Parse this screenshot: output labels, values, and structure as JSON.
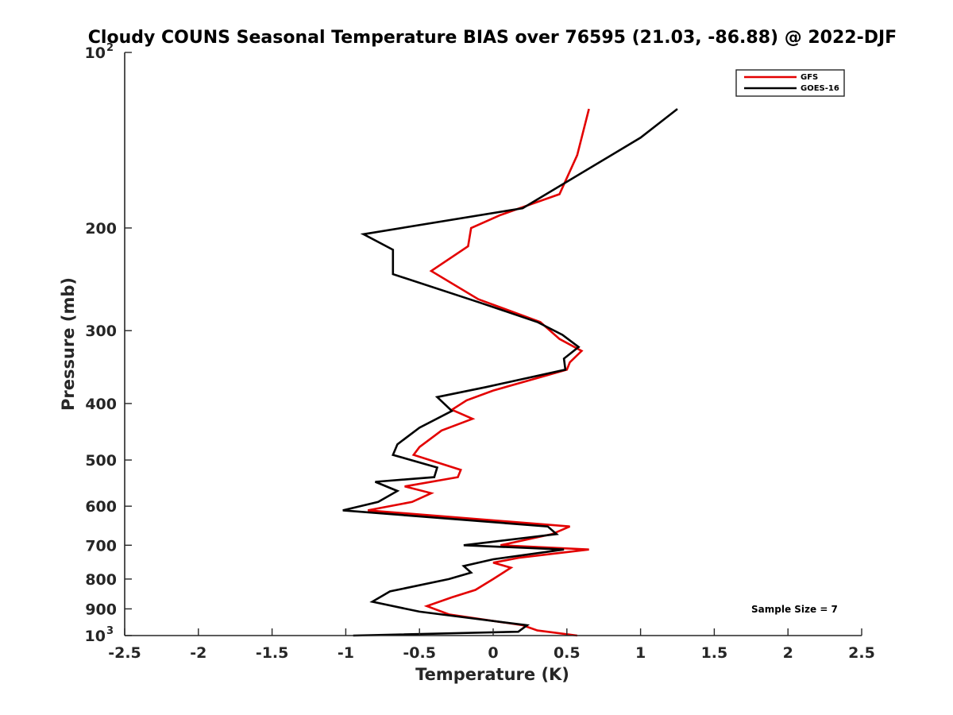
{
  "chart_data": {
    "type": "line",
    "title": "Cloudy COUNS Seasonal Temperature BIAS over 76595 (21.03, -86.88) @ 2022-DJF",
    "xlabel": "Temperature (K)",
    "ylabel": "Pressure (mb)",
    "xlim": [
      -2.5,
      2.5
    ],
    "ylim": [
      1000,
      100
    ],
    "yscale": "log",
    "x_ticks": [
      "-2.5",
      "-2",
      "-1.5",
      "-1",
      "-0.5",
      "0",
      "0.5",
      "1",
      "1.5",
      "2",
      "2.5"
    ],
    "y_ticks": [
      {
        "value": 100,
        "base": "10",
        "exp": "2"
      },
      {
        "value": 200,
        "label": "200"
      },
      {
        "value": 300,
        "label": "300"
      },
      {
        "value": 400,
        "label": "400"
      },
      {
        "value": 500,
        "label": "500"
      },
      {
        "value": 600,
        "label": "600"
      },
      {
        "value": 700,
        "label": "700"
      },
      {
        "value": 800,
        "label": "800"
      },
      {
        "value": 900,
        "label": "900"
      },
      {
        "value": 1000,
        "base": "10",
        "exp": "3"
      }
    ],
    "legend_position": "top-right",
    "annotation": "Sample Size = 7",
    "series": [
      {
        "name": "GFS",
        "color": "#e30000",
        "points": [
          [
            0.65,
            125
          ],
          [
            0.57,
            150
          ],
          [
            0.45,
            175
          ],
          [
            0.05,
            190
          ],
          [
            -0.15,
            200
          ],
          [
            -0.17,
            215
          ],
          [
            -0.42,
            237
          ],
          [
            -0.1,
            265
          ],
          [
            0.32,
            290
          ],
          [
            0.45,
            310
          ],
          [
            0.6,
            325
          ],
          [
            0.52,
            340
          ],
          [
            0.5,
            350
          ],
          [
            0.0,
            380
          ],
          [
            -0.18,
            395
          ],
          [
            -0.28,
            410
          ],
          [
            -0.14,
            425
          ],
          [
            -0.35,
            445
          ],
          [
            -0.5,
            475
          ],
          [
            -0.54,
            490
          ],
          [
            -0.22,
            520
          ],
          [
            -0.24,
            535
          ],
          [
            -0.6,
            555
          ],
          [
            -0.42,
            570
          ],
          [
            -0.55,
            590
          ],
          [
            -0.85,
            610
          ],
          [
            0.52,
            650
          ],
          [
            0.4,
            670
          ],
          [
            0.05,
            700
          ],
          [
            0.65,
            712
          ],
          [
            0.18,
            735
          ],
          [
            0.0,
            750
          ],
          [
            0.12,
            765
          ],
          [
            0.0,
            800
          ],
          [
            -0.12,
            835
          ],
          [
            -0.28,
            860
          ],
          [
            -0.45,
            890
          ],
          [
            -0.3,
            920
          ],
          [
            0.2,
            960
          ],
          [
            0.3,
            980
          ],
          [
            0.57,
            1000
          ]
        ]
      },
      {
        "name": "GOES-16",
        "color": "#000000",
        "points": [
          [
            1.25,
            125
          ],
          [
            1.0,
            140
          ],
          [
            0.2,
            185
          ],
          [
            -0.88,
            205
          ],
          [
            -0.68,
            218
          ],
          [
            -0.68,
            240
          ],
          [
            -0.1,
            268
          ],
          [
            0.3,
            290
          ],
          [
            0.47,
            305
          ],
          [
            0.58,
            320
          ],
          [
            0.48,
            335
          ],
          [
            0.49,
            350
          ],
          [
            -0.05,
            375
          ],
          [
            -0.38,
            390
          ],
          [
            -0.28,
            412
          ],
          [
            -0.5,
            440
          ],
          [
            -0.65,
            470
          ],
          [
            -0.68,
            490
          ],
          [
            -0.38,
            515
          ],
          [
            -0.4,
            535
          ],
          [
            -0.8,
            545
          ],
          [
            -0.65,
            565
          ],
          [
            -0.78,
            590
          ],
          [
            -1.02,
            610
          ],
          [
            0.37,
            650
          ],
          [
            0.43,
            670
          ],
          [
            -0.2,
            700
          ],
          [
            0.48,
            712
          ],
          [
            0.0,
            740
          ],
          [
            -0.2,
            760
          ],
          [
            -0.15,
            780
          ],
          [
            -0.3,
            800
          ],
          [
            -0.7,
            840
          ],
          [
            -0.82,
            875
          ],
          [
            -0.5,
            910
          ],
          [
            0.23,
            960
          ],
          [
            0.17,
            985
          ],
          [
            -0.95,
            1000
          ]
        ]
      }
    ]
  }
}
